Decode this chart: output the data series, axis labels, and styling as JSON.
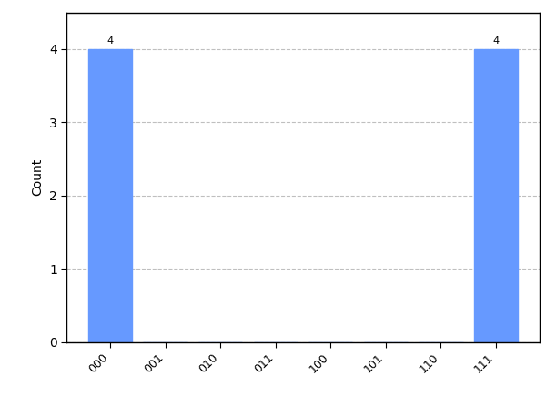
{
  "categories": [
    "000",
    "001",
    "010",
    "011",
    "100",
    "101",
    "110",
    "111"
  ],
  "values": [
    4,
    0,
    0,
    0,
    0,
    0,
    0,
    4
  ],
  "bar_color": "#6699ff",
  "ylabel": "Count",
  "ylim": [
    0,
    4.5
  ],
  "yticks": [
    0,
    1,
    2,
    3,
    4
  ],
  "grid_color": "#b0b0b0",
  "grid_style": "--",
  "grid_alpha": 0.8,
  "bar_width": 0.8,
  "annotation_fontsize": 8,
  "label_fontsize": 10,
  "tick_fontsize": 9,
  "background_color": "#ffffff"
}
